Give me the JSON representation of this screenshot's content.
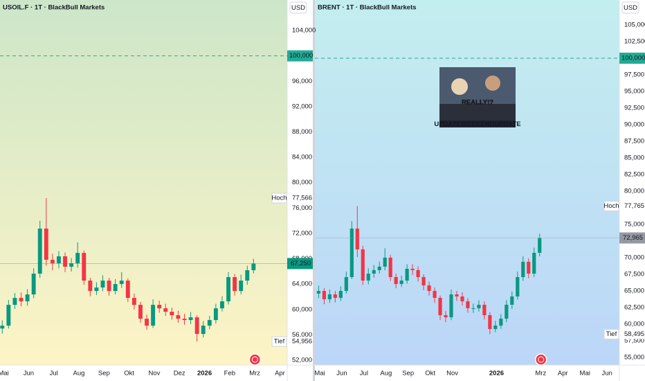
{
  "chart_data": [
    {
      "type": "candlestick",
      "title": "USOIL.F · 1T · BlackBull Markets",
      "currency": "USD",
      "up_color": "#089981",
      "down_color": "#f23645",
      "grid": false,
      "xlim": [
        4.86,
        16.29
      ],
      "ylim": [
        51.24,
        108.81
      ],
      "xticks": [
        {
          "value": 5,
          "label": "Mai"
        },
        {
          "value": 6,
          "label": "Jun"
        },
        {
          "value": 7,
          "label": "Jul"
        },
        {
          "value": 8,
          "label": "Aug"
        },
        {
          "value": 9,
          "label": "Sep"
        },
        {
          "value": 10,
          "label": "Okt"
        },
        {
          "value": 11,
          "label": "Nov"
        },
        {
          "value": 12,
          "label": "Dez"
        },
        {
          "value": 13,
          "label": "2026",
          "bold": true
        },
        {
          "value": 14,
          "label": "Feb"
        },
        {
          "value": 15,
          "label": "Mrz"
        },
        {
          "value": 16,
          "label": "Apr"
        }
      ],
      "yticks": [
        {
          "value": 52,
          "label": "52,000"
        },
        {
          "value": 56,
          "label": "56,000"
        },
        {
          "value": 60,
          "label": "60,000"
        },
        {
          "value": 64,
          "label": "64,000"
        },
        {
          "value": 68,
          "label": "68,000"
        },
        {
          "value": 72,
          "label": "72,000"
        },
        {
          "value": 76,
          "label": "76,000"
        },
        {
          "value": 80,
          "label": "80,000"
        },
        {
          "value": 84,
          "label": "84,000"
        },
        {
          "value": 88,
          "label": "88,000"
        },
        {
          "value": 92,
          "label": "92,000"
        },
        {
          "value": 96,
          "label": "96,000"
        },
        {
          "value": 104,
          "label": "104,000"
        }
      ],
      "x": [
        4.95,
        5.2,
        5.45,
        5.7,
        5.95,
        6.2,
        6.45,
        6.7,
        6.95,
        7.2,
        7.45,
        7.7,
        7.95,
        8.2,
        8.45,
        8.7,
        8.95,
        9.2,
        9.45,
        9.7,
        9.95,
        10.2,
        10.45,
        10.7,
        10.95,
        11.2,
        11.45,
        11.7,
        11.95,
        12.2,
        12.45,
        12.7,
        12.95,
        13.2,
        13.45,
        13.7,
        13.95,
        14.2,
        14.45,
        14.7,
        14.95
      ],
      "open": [
        57.0,
        57.46,
        60.74,
        61.83,
        61.29,
        62.38,
        65.66,
        72.76,
        67.84,
        67.29,
        68.39,
        66.75,
        67.29,
        68.93,
        64.56,
        62.92,
        63.47,
        64.56,
        62.92,
        64.02,
        64.56,
        61.83,
        60.74,
        58.55,
        57.46,
        60.74,
        60.19,
        59.65,
        59.1,
        58.55,
        58.34,
        58.77,
        56.15,
        57.46,
        58.34,
        60.19,
        61.29,
        65.11,
        62.92,
        64.56,
        66.2
      ],
      "high": [
        58.3,
        61.5,
        62.6,
        62.7,
        63.2,
        66.5,
        74.0,
        77.566,
        68.8,
        69.2,
        69.0,
        68.1,
        70.6,
        69.3,
        65.0,
        64.3,
        65.4,
        65.0,
        64.8,
        65.9,
        64.9,
        62.5,
        61.2,
        59.2,
        61.6,
        61.4,
        60.9,
        60.3,
        59.8,
        59.3,
        59.6,
        59.1,
        58.2,
        59.0,
        60.9,
        62.1,
        65.9,
        65.6,
        65.5,
        66.9,
        68.0
      ],
      "low": [
        56.2,
        57.0,
        60.1,
        60.5,
        60.6,
        61.8,
        65.0,
        66.9,
        66.2,
        66.5,
        65.9,
        66.0,
        66.6,
        63.9,
        62.1,
        62.3,
        62.9,
        62.2,
        62.4,
        63.4,
        61.2,
        60.0,
        57.9,
        56.8,
        57.1,
        59.5,
        59.0,
        58.4,
        57.9,
        57.6,
        57.7,
        54.956,
        55.6,
        56.9,
        57.8,
        59.7,
        60.8,
        62.2,
        62.4,
        63.9,
        65.7
      ],
      "close": [
        57.46,
        60.74,
        61.83,
        61.29,
        62.38,
        65.66,
        72.76,
        67.84,
        67.29,
        68.39,
        66.75,
        67.29,
        68.93,
        64.56,
        62.92,
        63.47,
        64.56,
        62.92,
        64.02,
        64.56,
        61.83,
        60.74,
        58.55,
        57.46,
        60.74,
        60.19,
        59.65,
        59.1,
        58.55,
        58.34,
        58.77,
        56.15,
        57.46,
        58.34,
        60.19,
        61.29,
        65.11,
        62.92,
        64.56,
        66.2,
        67.25
      ],
      "hline": {
        "value": 100,
        "label": "100,000",
        "color": "#22ab94"
      },
      "high_marker": {
        "name": "Hoch",
        "value": 77.566,
        "label": "77,566"
      },
      "low_marker": {
        "name": "Tief",
        "value": 54.956,
        "label": "54,956"
      },
      "last_price": {
        "value": 67.25,
        "label": "67,250",
        "color": "#089981"
      }
    },
    {
      "type": "candlestick",
      "title": "BRENT · 1T · BlackBull Markets",
      "currency": "USD",
      "up_color": "#089981",
      "down_color": "#f23645",
      "grid": false,
      "xlim": [
        4.78,
        18.56
      ],
      "ylim": [
        53.85,
        108.75
      ],
      "xticks": [
        {
          "value": 5,
          "label": "Mai"
        },
        {
          "value": 6,
          "label": "Jun"
        },
        {
          "value": 7,
          "label": "Jul"
        },
        {
          "value": 8,
          "label": "Aug"
        },
        {
          "value": 9,
          "label": "Sep"
        },
        {
          "value": 10,
          "label": "Okt"
        },
        {
          "value": 11,
          "label": "Nov"
        },
        {
          "value": 13,
          "label": "2026",
          "bold": true
        },
        {
          "value": 15,
          "label": "Mrz"
        },
        {
          "value": 16,
          "label": "Apr"
        },
        {
          "value": 17,
          "label": "Mai"
        },
        {
          "value": 18,
          "label": "Jun"
        }
      ],
      "yticks": [
        {
          "value": 55,
          "label": "55,000"
        },
        {
          "value": 57.5,
          "label": "57,500"
        },
        {
          "value": 60,
          "label": "60,000"
        },
        {
          "value": 62.5,
          "label": "62,500"
        },
        {
          "value": 65,
          "label": "65,000"
        },
        {
          "value": 67.5,
          "label": "67,500"
        },
        {
          "value": 70,
          "label": "70,000"
        },
        {
          "value": 75,
          "label": "75,000"
        },
        {
          "value": 80,
          "label": "80,000"
        },
        {
          "value": 82.5,
          "label": "82,500"
        },
        {
          "value": 85,
          "label": "85,000"
        },
        {
          "value": 87.5,
          "label": "87,500"
        },
        {
          "value": 90,
          "label": "90,000"
        },
        {
          "value": 92.5,
          "label": "92,500"
        },
        {
          "value": 95,
          "label": "95,000"
        },
        {
          "value": 97.5,
          "label": "97,500"
        },
        {
          "value": 102.5,
          "label": "102,500"
        },
        {
          "value": 105,
          "label": "105,000"
        }
      ],
      "x": [
        4.95,
        5.2,
        5.45,
        5.7,
        5.95,
        6.2,
        6.45,
        6.7,
        6.95,
        7.2,
        7.45,
        7.7,
        7.95,
        8.2,
        8.45,
        8.7,
        8.95,
        9.2,
        9.45,
        9.7,
        9.95,
        10.2,
        10.45,
        10.7,
        10.95,
        11.2,
        11.45,
        11.7,
        11.95,
        12.2,
        12.45,
        12.7,
        12.95,
        13.2,
        13.45,
        13.7,
        13.95,
        14.2,
        14.45,
        14.7,
        14.95
      ],
      "open": [
        64.6,
        65.0,
        63.75,
        64.48,
        63.96,
        65.0,
        67.08,
        74.38,
        71.25,
        66.56,
        67.6,
        68.13,
        68.65,
        70.0,
        67.08,
        66.04,
        66.56,
        68.33,
        68.13,
        67.08,
        65.83,
        65.0,
        63.96,
        61.35,
        61.04,
        64.48,
        64.17,
        63.44,
        62.4,
        62.4,
        62.92,
        61.35,
        59.27,
        59.79,
        60.83,
        62.92,
        64.17,
        67.08,
        69.38,
        67.6,
        70.73
      ],
      "high": [
        65.8,
        65.4,
        65.2,
        65.0,
        65.7,
        67.9,
        75.5,
        77.765,
        71.8,
        68.4,
        68.9,
        69.4,
        71.4,
        70.4,
        67.6,
        67.3,
        69.0,
        69.0,
        68.7,
        67.5,
        66.4,
        65.5,
        64.3,
        62.0,
        65.2,
        65.0,
        64.8,
        63.9,
        63.1,
        63.6,
        63.4,
        61.8,
        60.5,
        61.5,
        63.6,
        64.9,
        67.9,
        70.2,
        69.9,
        71.5,
        73.6
      ],
      "low": [
        63.9,
        63.0,
        63.2,
        63.3,
        63.5,
        64.6,
        66.8,
        70.1,
        65.9,
        66.0,
        67.0,
        67.6,
        68.1,
        66.5,
        65.4,
        65.6,
        66.1,
        67.4,
        66.4,
        65.1,
        64.3,
        63.2,
        60.6,
        60.3,
        60.6,
        63.5,
        62.8,
        61.7,
        61.7,
        61.9,
        60.7,
        58.495,
        58.8,
        59.3,
        60.3,
        62.3,
        63.7,
        66.5,
        66.9,
        67.1,
        70.2
      ],
      "close": [
        65.0,
        63.75,
        64.48,
        63.96,
        65.0,
        67.08,
        74.38,
        71.25,
        66.56,
        67.6,
        68.13,
        68.65,
        70.0,
        67.08,
        66.04,
        66.56,
        68.33,
        68.13,
        67.08,
        65.83,
        65.0,
        63.96,
        61.35,
        61.04,
        64.48,
        64.17,
        63.44,
        62.4,
        62.4,
        62.92,
        61.35,
        59.27,
        59.79,
        60.83,
        62.92,
        64.17,
        67.08,
        69.38,
        67.6,
        70.73,
        72.965
      ],
      "hline": {
        "value": 100,
        "label": "100,000",
        "color": "#22ab94"
      },
      "high_marker": {
        "name": "Hoch",
        "value": 77.765,
        "label": "77,765"
      },
      "low_marker": {
        "name": "Tief",
        "value": 58.495,
        "label": "58,495"
      },
      "last_price": {
        "value": 72.965,
        "label": "72,965",
        "color": "#9598a1"
      },
      "image": {
        "text": "REALLY!?",
        "caption": "UPDATEWEEKENDUPDATE"
      }
    }
  ]
}
